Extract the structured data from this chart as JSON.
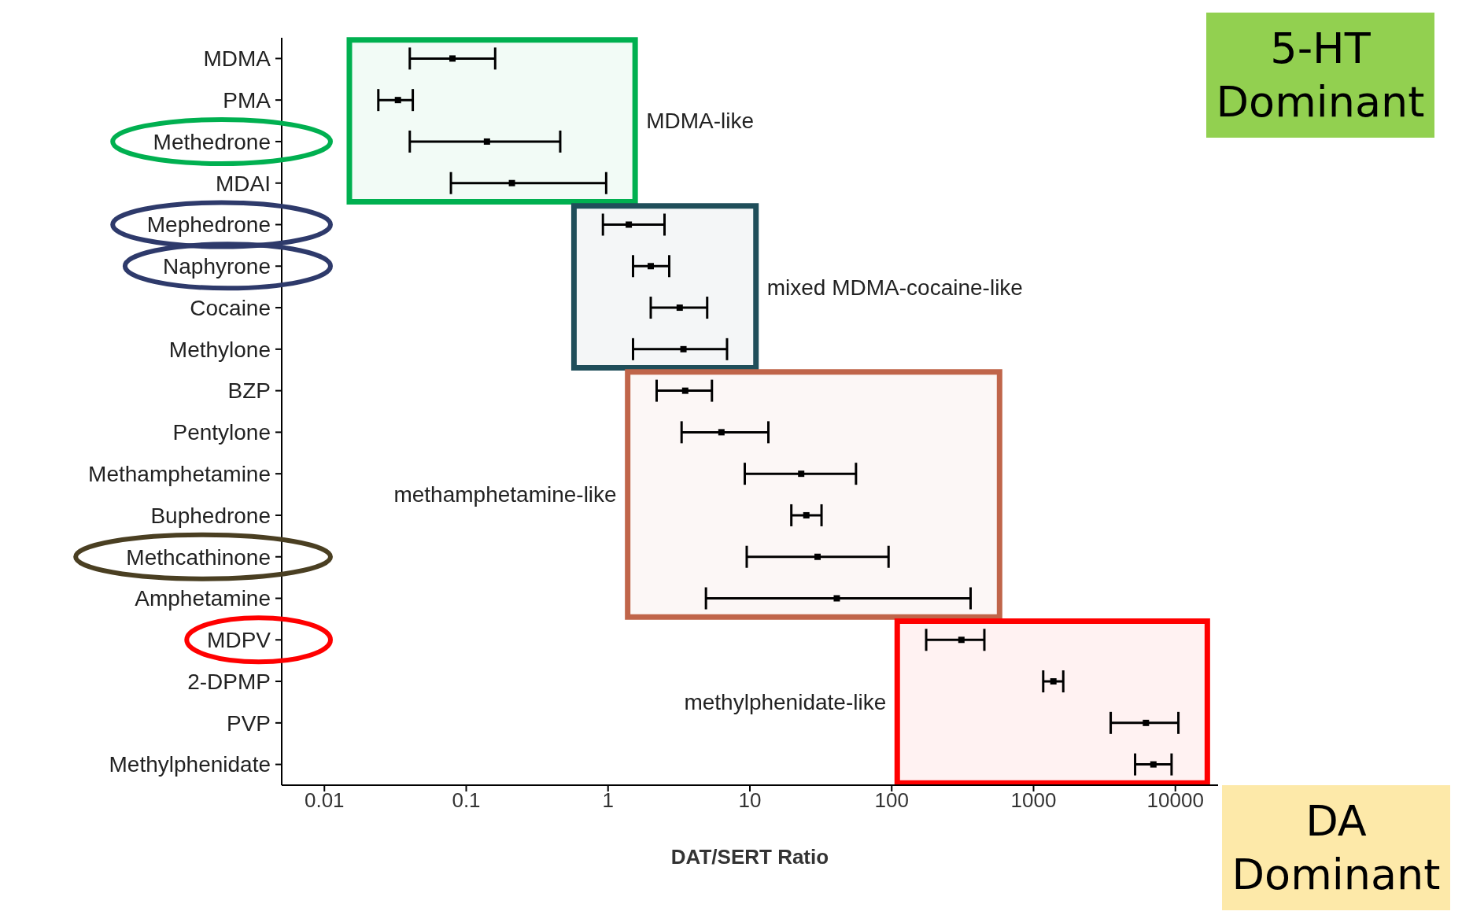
{
  "chart_data": {
    "type": "scatter",
    "orientation": "horizontal",
    "xlabel": "DAT/SERT Ratio",
    "log": "x",
    "marker": "square",
    "grid": false,
    "legend": false,
    "categories": [
      "MDMA",
      "PMA",
      "Methedrone",
      "MDAI",
      "Mephedrone",
      "Naphyrone",
      "Cocaine",
      "Methylone",
      "BZP",
      "Pentylone",
      "Methamphetamine",
      "Buphedrone",
      "Methcathinone",
      "Amphetamine",
      "MDPV",
      "2-DPMP",
      "PVP",
      "Methylphenidate"
    ],
    "series": [
      {
        "color": "#000000",
        "values": [
          0.08,
          0.033,
          0.14,
          0.21,
          1.4,
          2.0,
          3.2,
          3.4,
          3.5,
          6.3,
          23,
          25,
          30,
          41,
          310,
          1380,
          6200,
          7000
        ],
        "errors": [
          [
            0.04,
            0.16
          ],
          [
            0.024,
            0.042
          ],
          [
            0.04,
            0.46
          ],
          [
            0.078,
            0.97
          ],
          [
            0.92,
            2.5
          ],
          [
            1.5,
            2.7
          ],
          [
            2.0,
            5.0
          ],
          [
            1.5,
            6.9
          ],
          [
            2.2,
            5.4
          ],
          [
            3.3,
            13.5
          ],
          [
            9.2,
            56
          ],
          [
            19.6,
            32
          ],
          [
            9.5,
            95
          ],
          [
            4.9,
            360
          ],
          [
            175,
            450
          ],
          [
            1170,
            1620
          ],
          [
            3500,
            10500
          ],
          [
            5200,
            9400
          ]
        ]
      }
    ],
    "xlim": [
      0.005,
      20000
    ],
    "xticks": [
      0.01,
      0.1,
      1,
      10,
      100,
      1000,
      10000
    ],
    "bands": [
      {
        "axis": "y",
        "from": "MDMA",
        "to": "MDAI",
        "label": "MDMA-like",
        "color": "#00b050"
      },
      {
        "axis": "y",
        "from": "Mephedrone",
        "to": "Methylone",
        "label": "mixed MDMA-cocaine-like",
        "color": "#1f4e5a"
      },
      {
        "axis": "y",
        "from": "BZP",
        "to": "Amphetamine",
        "label": "methamphetamine-like",
        "color": "#c0654a"
      },
      {
        "axis": "y",
        "from": "MDPV",
        "to": "Methylphenidate",
        "label": "methylphenidate-like",
        "color": "#ff0000"
      }
    ],
    "annotations": [
      "5-HT Dominant",
      "DA Dominant"
    ]
  }
}
